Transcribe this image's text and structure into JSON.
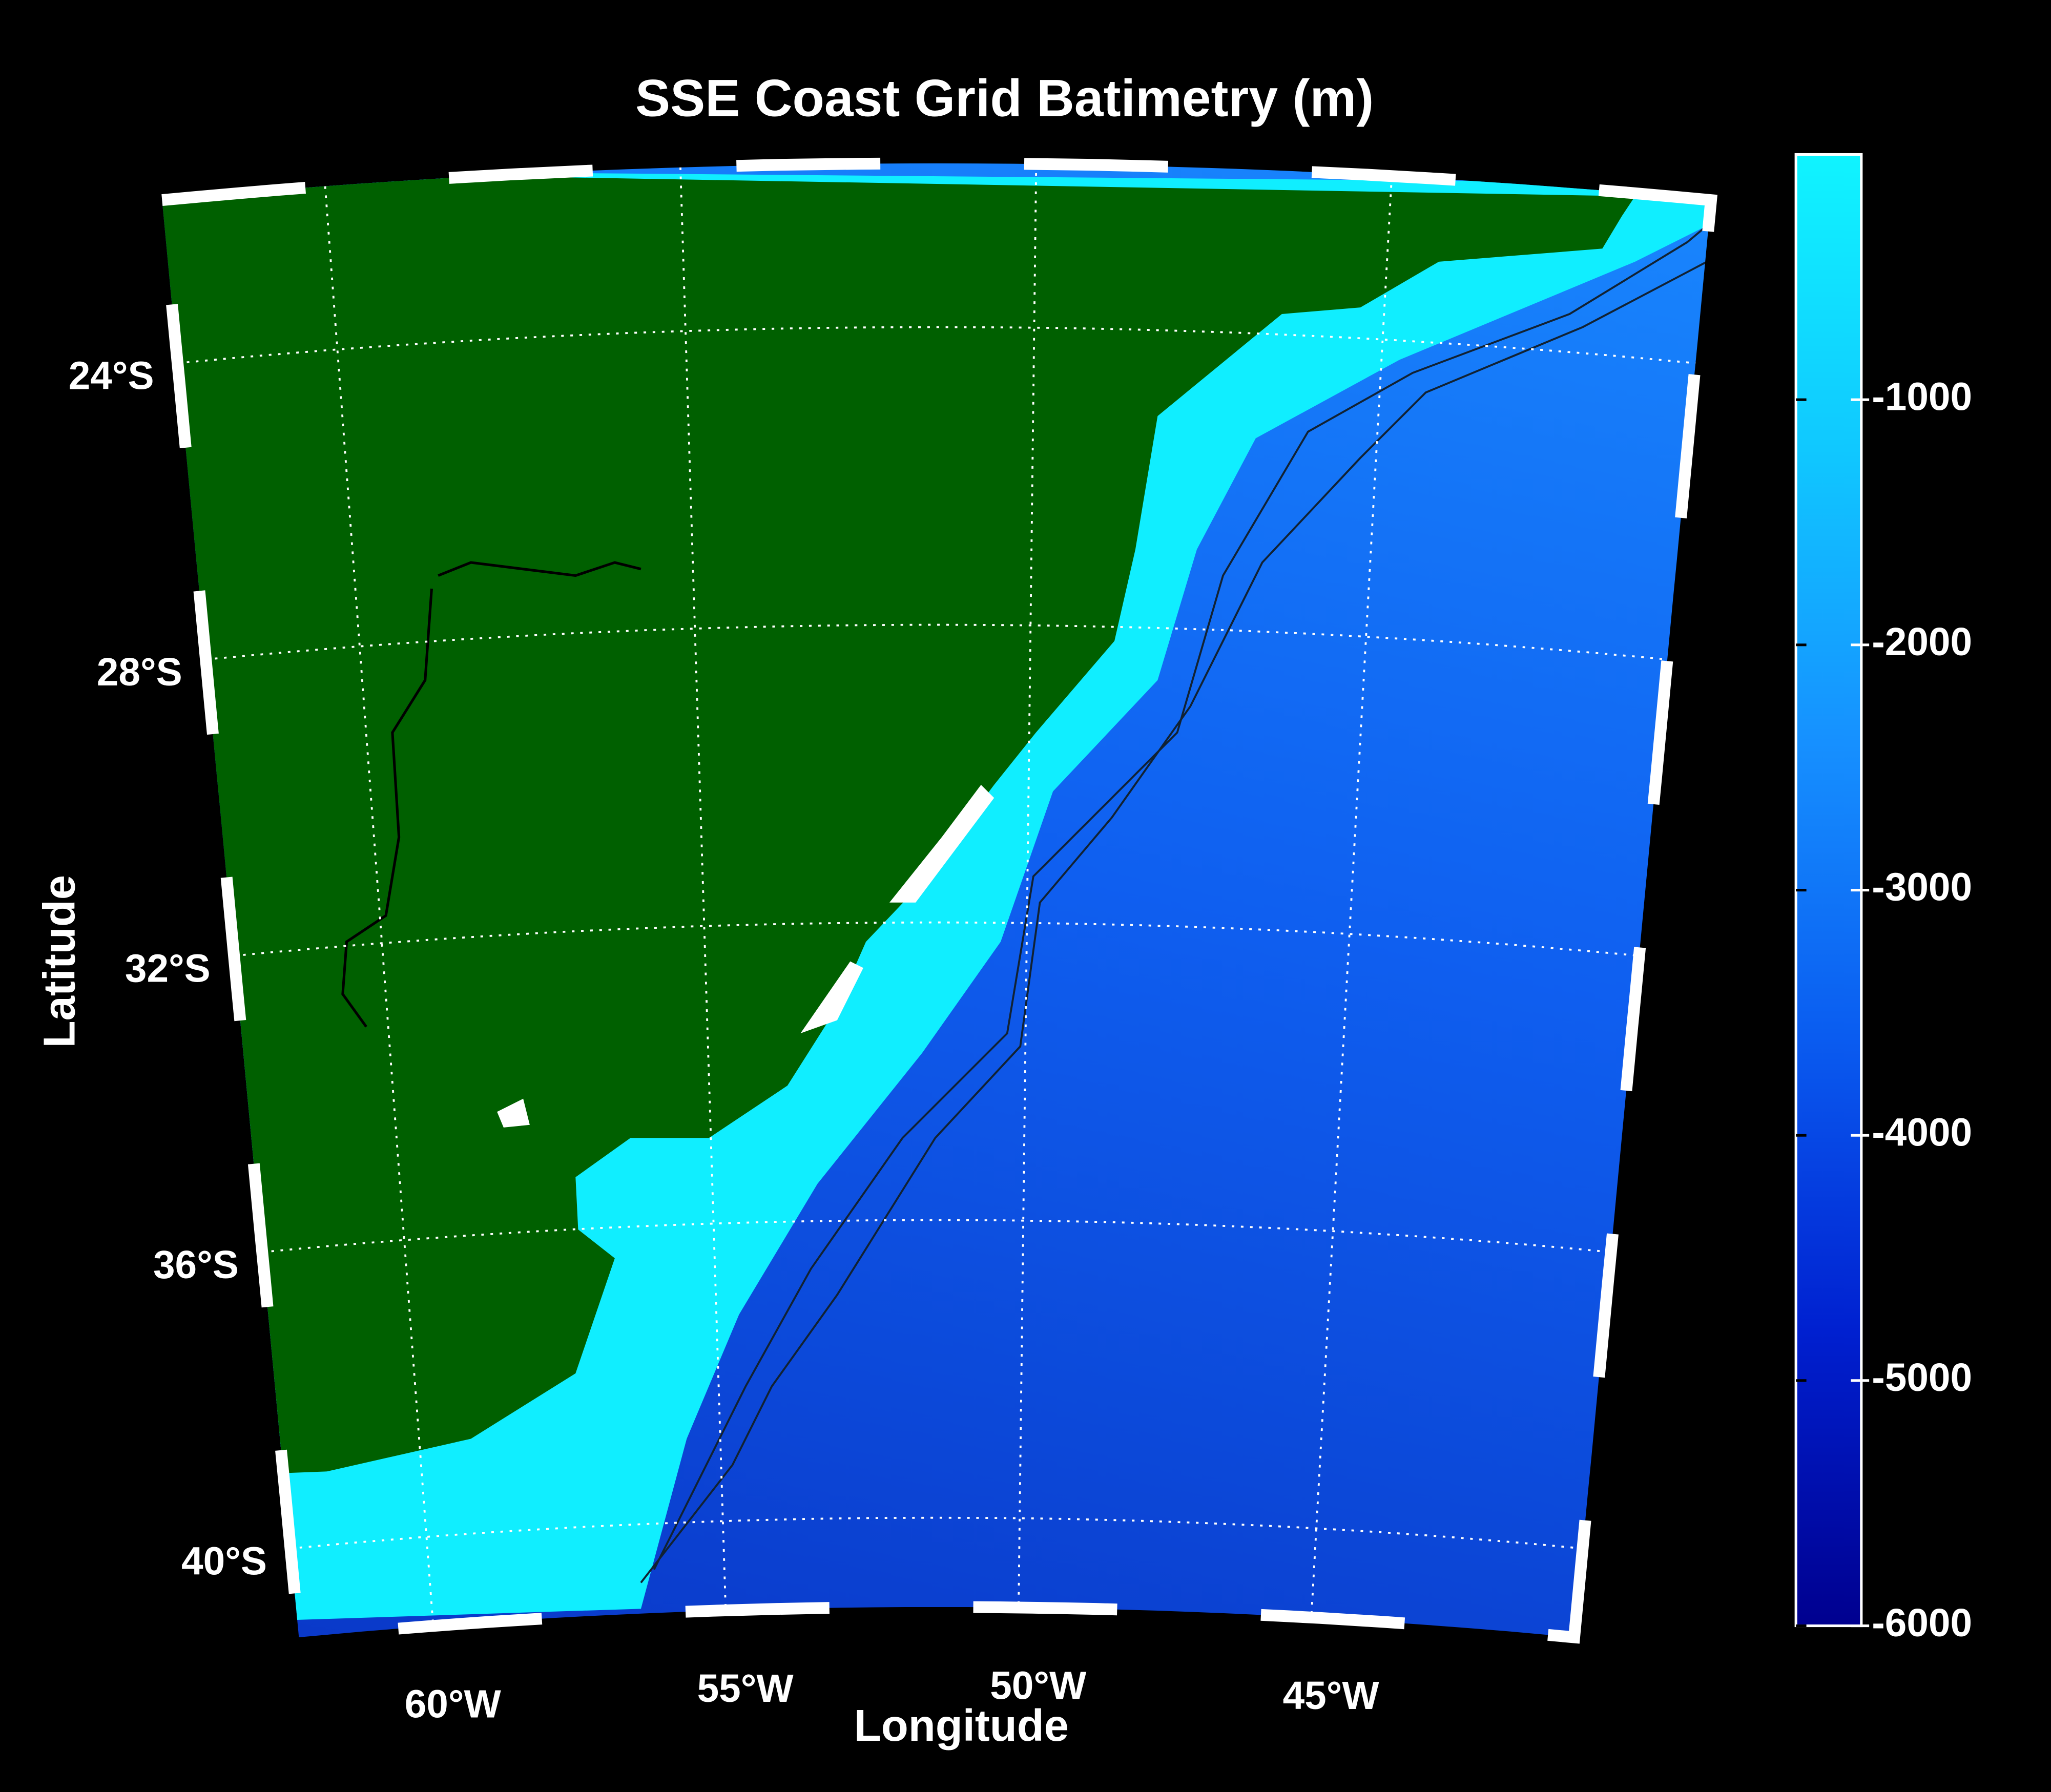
{
  "chart_data": {
    "type": "map",
    "title": "SSE Coast Grid Batimetry (m)",
    "xlabel": "Longitude",
    "ylabel": "Latitude",
    "xlim": [
      -62.3,
      -40.5
    ],
    "ylim": [
      -41.2,
      -21.8
    ],
    "xticks": [
      {
        "value": -60,
        "label": "60°W"
      },
      {
        "value": -55,
        "label": "55°W"
      },
      {
        "value": -50,
        "label": "50°W"
      },
      {
        "value": -45,
        "label": "45°W"
      }
    ],
    "yticks": [
      {
        "value": -24,
        "label": "24°S"
      },
      {
        "value": -28,
        "label": "28°S"
      },
      {
        "value": -32,
        "label": "32°S"
      },
      {
        "value": -36,
        "label": "36°S"
      },
      {
        "value": -40,
        "label": "40°S"
      }
    ],
    "grid": true,
    "land_color": "#006000",
    "colorbar": {
      "clim": [
        -6000,
        0
      ],
      "ticks": [
        -6000,
        -5000,
        -4000,
        -3000,
        -2000,
        -1000
      ],
      "colors": [
        "#00008f",
        "#0020d0",
        "#0a5cf0",
        "#1690ff",
        "#10c8ff",
        "#10f4ff"
      ]
    }
  }
}
